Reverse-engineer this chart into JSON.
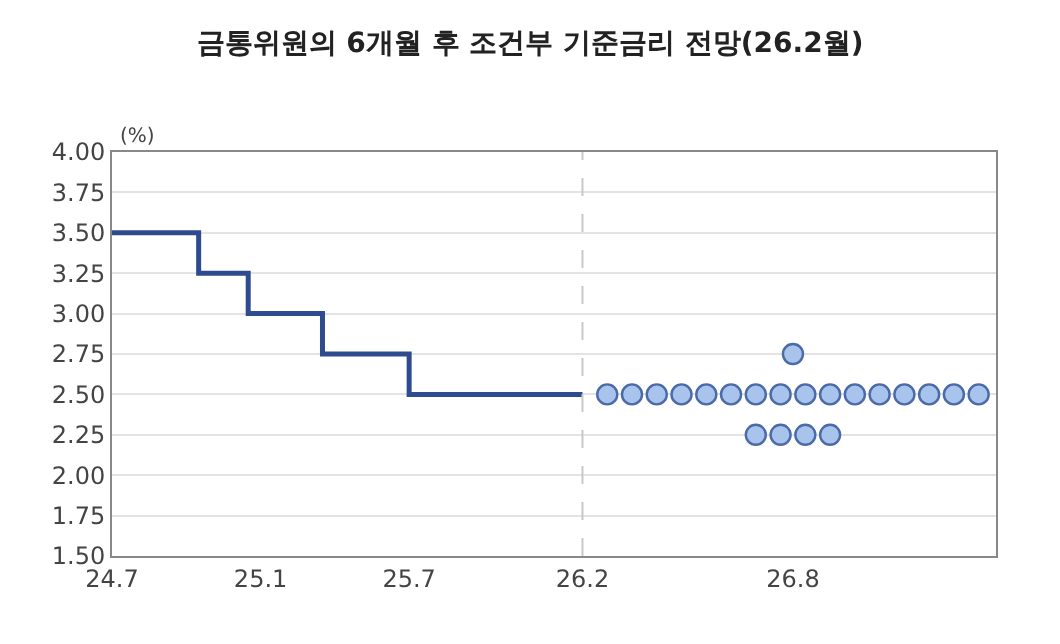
{
  "chart_data": {
    "type": "step",
    "title": "금통위원의 6개월 후 조건부 기준금리 전망(26.2월)",
    "ylabel": "(%)",
    "categories": [
      "24.7",
      null,
      null,
      null,
      null,
      null,
      null,
      null,
      null,
      null,
      null,
      null,
      "25.1",
      null,
      null,
      null,
      null,
      null,
      null,
      null,
      null,
      null,
      null,
      null,
      "25.7",
      null,
      null,
      null,
      null,
      null,
      null,
      null,
      null,
      null,
      null,
      null,
      null,
      null,
      "26.2",
      null,
      null,
      null,
      null,
      null,
      null,
      null,
      null,
      null,
      null,
      null,
      null,
      null,
      null,
      null,
      null,
      "26.8",
      null,
      null,
      null,
      null,
      null,
      null,
      null,
      null,
      null,
      null,
      null,
      null,
      null,
      null,
      null,
      null
    ],
    "series": [
      {
        "color": "#2e4b8f",
        "values": [
          3.5,
          3.5,
          3.5,
          3.5,
          3.5,
          3.5,
          3.5,
          3.25,
          3.25,
          3.25,
          3.25,
          3.0,
          3.0,
          3.0,
          3.0,
          3.0,
          3.0,
          2.75,
          2.75,
          2.75,
          2.75,
          2.75,
          2.75,
          2.75,
          2.5,
          2.5,
          2.5,
          2.5,
          2.5,
          2.5,
          2.5,
          2.5,
          2.5,
          2.5,
          2.5,
          2.5,
          2.5,
          2.5,
          2.5,
          null,
          null,
          null,
          null,
          null,
          null,
          null,
          null,
          null,
          null,
          null,
          null,
          null,
          null,
          null,
          null,
          null,
          null,
          null,
          null,
          null,
          null,
          null,
          null,
          null,
          null,
          null,
          null,
          null,
          null,
          null,
          null,
          null
        ]
      },
      {
        "type": "scatter",
        "marker": "circle",
        "color": "#a9c4ec",
        "values": [
          null,
          null,
          null,
          null,
          null,
          null,
          null,
          null,
          null,
          null,
          null,
          null,
          null,
          null,
          null,
          null,
          null,
          null,
          null,
          null,
          null,
          null,
          null,
          null,
          null,
          null,
          null,
          null,
          null,
          null,
          null,
          null,
          null,
          null,
          null,
          null,
          null,
          null,
          null,
          null,
          2.5,
          null,
          2.5,
          null,
          2.5,
          null,
          2.5,
          null,
          2.5,
          null,
          2.5,
          null,
          2.5,
          null,
          2.5,
          null,
          2.5,
          null,
          2.5,
          null,
          2.5,
          null,
          2.5,
          null,
          2.5,
          null,
          2.5,
          null,
          2.5,
          null,
          2.5,
          null
        ]
      },
      {
        "type": "scatter",
        "color": "#a9c4ec",
        "values": [
          null,
          null,
          null,
          null,
          null,
          null,
          null,
          null,
          null,
          null,
          null,
          null,
          null,
          null,
          null,
          null,
          null,
          null,
          null,
          null,
          null,
          null,
          null,
          null,
          null,
          null,
          null,
          null,
          null,
          null,
          null,
          null,
          null,
          null,
          null,
          null,
          null,
          null,
          null,
          null,
          null,
          null,
          null,
          null,
          null,
          null,
          null,
          null,
          null,
          null,
          null,
          null,
          2.25,
          null,
          2.25,
          null,
          2.25,
          null,
          2.25,
          null,
          null,
          null,
          null,
          null,
          null,
          null,
          null,
          null,
          null,
          null,
          null,
          null
        ]
      },
      {
        "type": "scatter",
        "color": "#a9c4ec",
        "values": [
          null,
          null,
          null,
          null,
          null,
          null,
          null,
          null,
          null,
          null,
          null,
          null,
          null,
          null,
          null,
          null,
          null,
          null,
          null,
          null,
          null,
          null,
          null,
          null,
          null,
          null,
          null,
          null,
          null,
          null,
          null,
          null,
          null,
          null,
          null,
          null,
          null,
          null,
          null,
          null,
          null,
          null,
          null,
          null,
          null,
          null,
          null,
          null,
          null,
          null,
          null,
          null,
          null,
          null,
          null,
          2.75,
          null,
          null,
          null,
          null,
          null,
          null,
          null,
          null,
          null,
          null,
          null,
          null,
          null,
          null,
          null,
          null
        ]
      }
    ],
    "ylim": [
      1.5,
      4.0
    ],
    "yticks": [
      {
        "value": 1.5,
        "label": "1.50"
      },
      {
        "value": 1.75,
        "label": "1.75"
      },
      {
        "value": 2.0,
        "label": "2.00"
      },
      {
        "value": 2.25,
        "label": "2.25"
      },
      {
        "value": 2.5,
        "label": "2.50"
      },
      {
        "value": 2.75,
        "label": "2.75"
      },
      {
        "value": 3.0,
        "label": "3.00"
      },
      {
        "value": 3.25,
        "label": "3.25"
      },
      {
        "value": 3.5,
        "label": "3.50"
      },
      {
        "value": 3.75,
        "label": "3.75"
      },
      {
        "value": 4.0,
        "label": "4.00"
      }
    ],
    "grid": "y",
    "ref_lines": [
      {
        "axis": "x",
        "value": "26.2",
        "color": "#c8c8c8",
        "line_style": "dashed"
      }
    ]
  }
}
